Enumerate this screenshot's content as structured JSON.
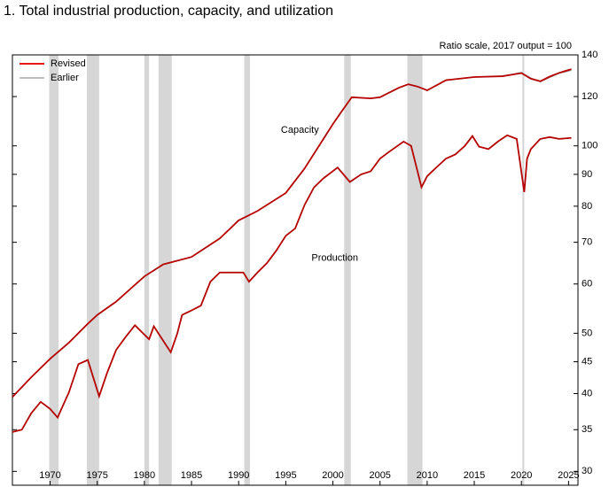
{
  "chart_data": {
    "type": "line",
    "title": "1. Total industrial production, capacity, and utilization",
    "subtitle": "Ratio scale, 2017  output = 100",
    "log_scale": true,
    "xlim": [
      1966,
      2026
    ],
    "xticks": [
      1970,
      1975,
      1980,
      1985,
      1990,
      1995,
      2000,
      2005,
      2010,
      2015,
      2020,
      2025
    ],
    "ylim": [
      28.5,
      140
    ],
    "yticks": [
      30,
      35,
      40,
      45,
      50,
      60,
      70,
      80,
      90,
      100,
      120,
      140
    ],
    "recessions": [
      [
        1969.9,
        1970.9
      ],
      [
        1973.9,
        1975.2
      ],
      [
        1980.0,
        1980.5
      ],
      [
        1981.5,
        1982.9
      ],
      [
        1990.6,
        1991.2
      ],
      [
        2001.2,
        2001.9
      ],
      [
        2007.9,
        2009.5
      ],
      [
        2020.1,
        2020.3
      ]
    ],
    "recession_color": "#d6d6d6",
    "legend": [
      {
        "name": "Revised",
        "color": "#e41a1c",
        "line_color": "#b50000"
      },
      {
        "name": "Earlier",
        "color": "#999999",
        "line_color": "#aaaaaa"
      }
    ],
    "annotations": [
      {
        "text": "Capacity",
        "x": 1996.5,
        "y": 106
      },
      {
        "text": "Production",
        "x": 2000.2,
        "y": 66
      }
    ],
    "series": [
      {
        "version": 1,
        "x": [
          2018,
          2019,
          2020,
          2021,
          2022,
          2023,
          2024,
          2025.3
        ],
        "values": [
          129.5,
          130.2,
          131.2,
          128.5,
          126.8,
          128.8,
          130.8,
          132.2
        ]
      },
      {
        "version": 0,
        "x": [
          1966,
          1968,
          1970,
          1972,
          1974,
          1975,
          1977,
          1980,
          1982,
          1985,
          1988,
          1990,
          1992,
          1995,
          1997,
          2000,
          2001,
          2002,
          2004,
          2005,
          2007,
          2008,
          2009,
          2010,
          2012,
          2015,
          2018,
          2020,
          2021,
          2022,
          2023,
          2024,
          2025.3
        ],
        "values": [
          39.5,
          42.5,
          45.5,
          48.3,
          51.8,
          53.5,
          56.2,
          61.7,
          64.5,
          66.3,
          71,
          75.9,
          78.6,
          84,
          92,
          108.4,
          114,
          119.7,
          119.2,
          119.7,
          124,
          125.6,
          124.5,
          122.8,
          127.5,
          129,
          129.4,
          130.9,
          128.2,
          127,
          129.2,
          131,
          132.8
        ]
      },
      {
        "version": 0,
        "x": [
          1966,
          1967,
          1968,
          1969,
          1970,
          1970.8,
          1971,
          1972,
          1973,
          1974,
          1975.2,
          1976,
          1977,
          1978,
          1979,
          1980.5,
          1981,
          1982.8,
          1983.5,
          1984,
          1985,
          1986,
          1987,
          1988,
          1989,
          1990.5,
          1991.1,
          1992,
          1993,
          1994,
          1995,
          1996,
          1997,
          1998,
          1999,
          2000.5,
          2001.8,
          2003,
          2004,
          2005,
          2006,
          2007.5,
          2008.3,
          2009.4,
          2010,
          2011,
          2012,
          2013,
          2014,
          2014.8,
          2015.5,
          2016.5,
          2017.5,
          2018.5,
          2019.5,
          2020.3,
          2020.6,
          2021,
          2022,
          2023,
          2024,
          2025.3
        ],
        "values": [
          34.7,
          35,
          37.2,
          38.8,
          37.8,
          36.6,
          37.2,
          40.2,
          44.6,
          45.3,
          39.6,
          43,
          47,
          49.3,
          51.5,
          48.9,
          51.3,
          46.6,
          50,
          53.5,
          54.4,
          55.4,
          60.5,
          62.6,
          62.6,
          62.6,
          60.5,
          62.6,
          64.8,
          67.9,
          71.7,
          73.7,
          80.4,
          85.8,
          88.7,
          92.3,
          87.5,
          90,
          91,
          95.4,
          97.9,
          101.6,
          100,
          85.8,
          89.4,
          92.4,
          95.4,
          96.9,
          100,
          103.7,
          99.7,
          98.8,
          101.6,
          104,
          102.6,
          84.3,
          95.4,
          98.8,
          102.6,
          103.3,
          102.6,
          103
        ]
      }
    ]
  }
}
